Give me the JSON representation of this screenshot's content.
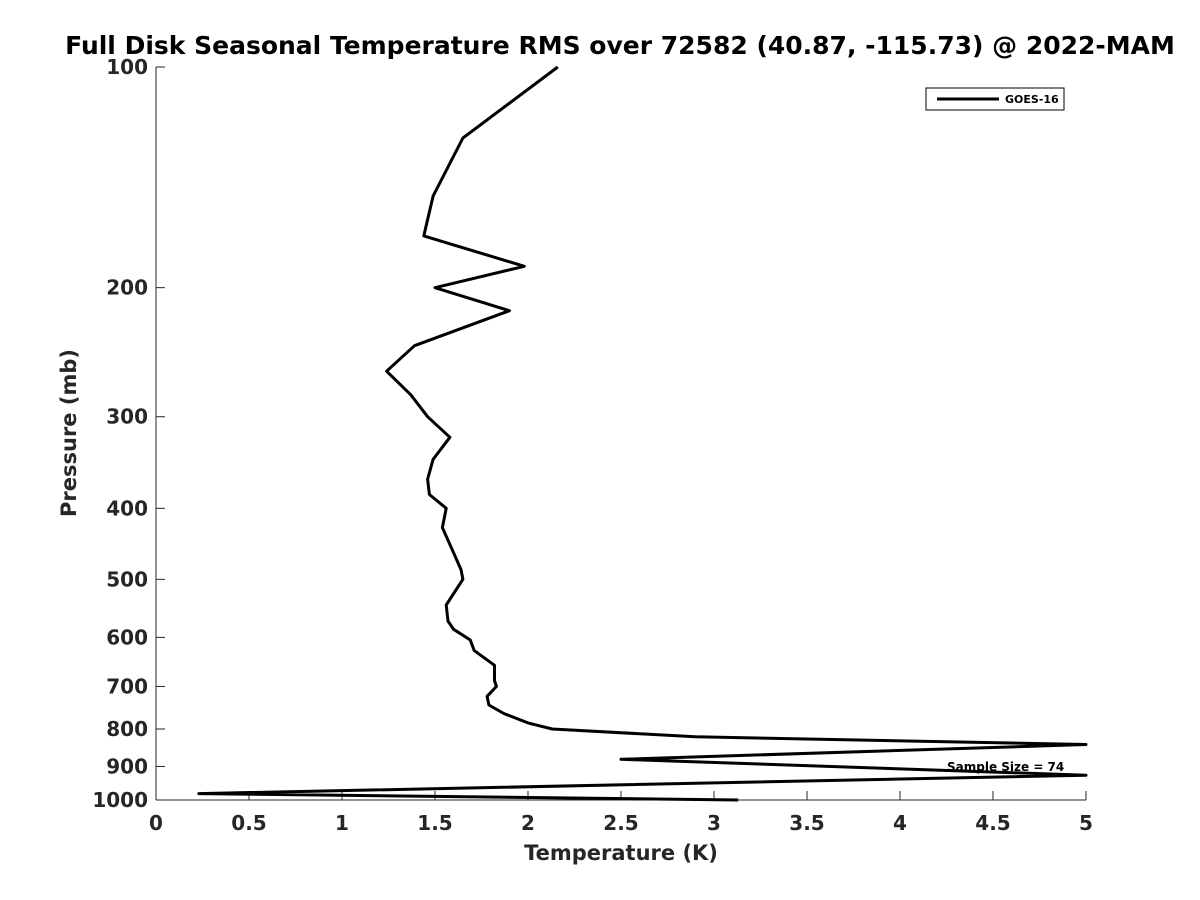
{
  "chart_data": {
    "type": "line",
    "title": "Full Disk Seasonal Temperature RMS over 72582 (40.87, -115.73) @ 2022-MAM",
    "xlabel": "Temperature (K)",
    "ylabel": "Pressure (mb)",
    "xlim": [
      0,
      5
    ],
    "ylim": [
      100,
      1000
    ],
    "y_scale": "log",
    "y_reversed": true,
    "xticks": [
      0,
      0.5,
      1,
      1.5,
      2,
      2.5,
      3,
      3.5,
      4,
      4.5,
      5
    ],
    "xtick_labels": [
      "0",
      "0.5",
      "1",
      "1.5",
      "2",
      "2.5",
      "3",
      "3.5",
      "4",
      "4.5",
      "5"
    ],
    "yticks": [
      100,
      200,
      300,
      400,
      500,
      600,
      700,
      800,
      900,
      1000
    ],
    "ytick_labels": [
      "100",
      "200",
      "300",
      "400",
      "500",
      "600",
      "700",
      "800",
      "900",
      "1000"
    ],
    "grid": false,
    "legend_position": "top-right",
    "series": [
      {
        "name": "GOES-16",
        "color": "#000000",
        "points": [
          [
            2.16,
            100
          ],
          [
            1.65,
            125
          ],
          [
            1.49,
            150
          ],
          [
            1.44,
            170
          ],
          [
            1.98,
            187
          ],
          [
            1.5,
            200
          ],
          [
            1.9,
            215
          ],
          [
            1.39,
            240
          ],
          [
            1.24,
            260
          ],
          [
            1.37,
            280
          ],
          [
            1.46,
            300
          ],
          [
            1.58,
            320
          ],
          [
            1.49,
            343
          ],
          [
            1.46,
            365
          ],
          [
            1.47,
            383
          ],
          [
            1.56,
            400
          ],
          [
            1.54,
            425
          ],
          [
            1.6,
            460
          ],
          [
            1.64,
            485
          ],
          [
            1.65,
            500
          ],
          [
            1.56,
            542
          ],
          [
            1.57,
            570
          ],
          [
            1.6,
            585
          ],
          [
            1.69,
            605
          ],
          [
            1.71,
            625
          ],
          [
            1.82,
            655
          ],
          [
            1.82,
            687
          ],
          [
            1.83,
            700
          ],
          [
            1.78,
            722
          ],
          [
            1.79,
            742
          ],
          [
            1.87,
            762
          ],
          [
            2.0,
            785
          ],
          [
            2.13,
            800
          ],
          [
            2.9,
            820
          ],
          [
            5.0,
            840
          ],
          [
            2.5,
            880
          ],
          [
            5.0,
            925
          ],
          [
            0.23,
            980
          ],
          [
            3.13,
            1000
          ]
        ]
      }
    ],
    "annotations": [
      {
        "text": "Sample Size = 74"
      }
    ]
  }
}
